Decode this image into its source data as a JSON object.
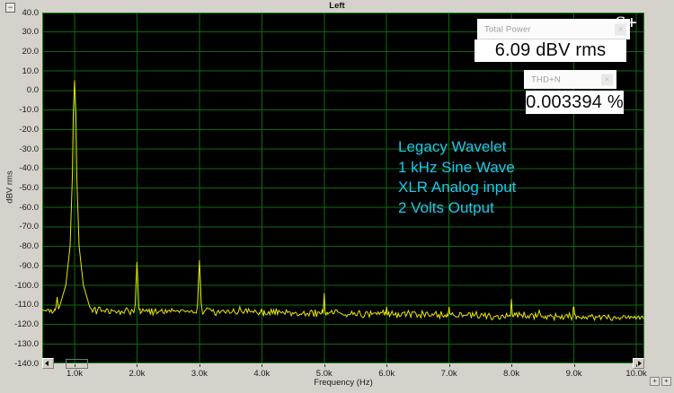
{
  "window": {
    "title": "Left"
  },
  "branding": {
    "logo": "S+"
  },
  "controls": {
    "collapse_label": "−",
    "close_label": "×",
    "zoom_button_1": "+",
    "zoom_button_2": "+"
  },
  "measurements": {
    "total_power": {
      "label": "Total Power",
      "value": "6.09 dBV rms"
    },
    "thd_n": {
      "label": "THD+N",
      "value": "0.003394 %"
    }
  },
  "annotation": {
    "color": "#1ec8ec",
    "lines": [
      "Legacy Wavelet",
      "1 kHz Sine Wave",
      "XLR Analog input",
      "2 Volts Output"
    ]
  },
  "chart_data": {
    "type": "line",
    "title": "Left",
    "xlabel": "Frequency (Hz)",
    "ylabel": "dBV rms",
    "x_range_khz": [
      0.4816,
      10.1296
    ],
    "y_range_db": [
      -140,
      40
    ],
    "x_tick_khz": [
      1,
      2,
      3,
      4,
      5,
      6,
      7,
      8,
      9,
      10
    ],
    "x_tick_labels": [
      "1.0k",
      "2.0k",
      "3.0k",
      "4.0k",
      "5.0k",
      "6.0k",
      "7.0k",
      "8.0k",
      "9.0k",
      "10.0k"
    ],
    "y_tick_step": 10,
    "y_tick_labels": [
      "40.0",
      "30.0",
      "20.0",
      "10.0",
      "0.0",
      "-10.0",
      "-20.0",
      "-30.0",
      "-40.0",
      "-50.0",
      "-60.0",
      "-70.0",
      "-80.0",
      "-90.0",
      "-100.0",
      "-110.0",
      "-120.0",
      "-130.0",
      "-140.0"
    ],
    "grid": true,
    "legend": "none",
    "colors": {
      "plot_bg": "#000000",
      "grid": "#0b6b0b",
      "border": "#0e8a0e",
      "trace": "#e8e800",
      "frame_bg": "#d5d2cb"
    },
    "noise_floor": {
      "start_db": -112.5,
      "end_db": -116.5,
      "jitter_db": 2.2,
      "seed": 42
    },
    "peaks": [
      {
        "f_khz": 0.72,
        "db": -106,
        "type": "minor"
      },
      {
        "f_khz": 1.0,
        "db": 5.3,
        "type": "main"
      },
      {
        "f_khz": 2.0,
        "db": -88,
        "type": "harmonic"
      },
      {
        "f_khz": 3.0,
        "db": -87,
        "type": "harmonic"
      },
      {
        "f_khz": 4.0,
        "db": -112,
        "type": "minor"
      },
      {
        "f_khz": 5.0,
        "db": -104,
        "type": "harmonic"
      },
      {
        "f_khz": 6.0,
        "db": -111,
        "type": "minor"
      },
      {
        "f_khz": 7.0,
        "db": -111,
        "type": "minor"
      },
      {
        "f_khz": 8.0,
        "db": -107,
        "type": "harmonic"
      },
      {
        "f_khz": 9.0,
        "db": -111,
        "type": "minor"
      }
    ]
  }
}
